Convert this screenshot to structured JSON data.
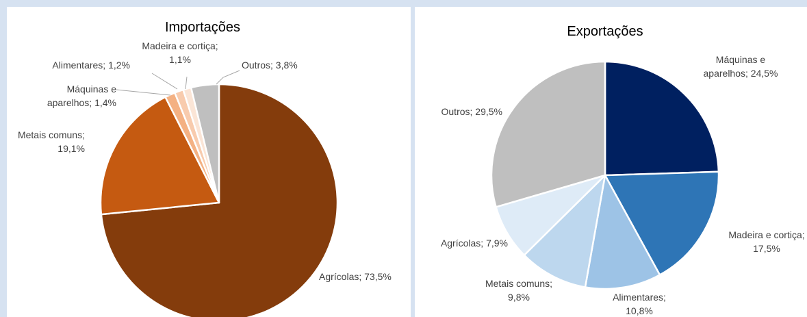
{
  "chart_data": [
    {
      "type": "pie",
      "title": "Importações",
      "slices": [
        {
          "label": "Agrícolas",
          "value": 73.5,
          "text": "Agrícolas; 73,5%",
          "color": "#843c0c"
        },
        {
          "label": "Metais comuns",
          "value": 19.1,
          "text": "Metais comuns;\n19,1%",
          "color": "#c55a11"
        },
        {
          "label": "Máquinas e aparelhos",
          "value": 1.4,
          "text": "Máquinas e\naparelhos; 1,4%",
          "color": "#f4b183"
        },
        {
          "label": "Alimentares",
          "value": 1.2,
          "text": "Alimentares; 1,2%",
          "color": "#f8cbad"
        },
        {
          "label": "Madeira e cortiça",
          "value": 1.1,
          "text": "Madeira e cortiça;\n1,1%",
          "color": "#fbe5d6"
        },
        {
          "label": "Outros",
          "value": 3.8,
          "text": "Outros; 3,8%",
          "color": "#bfbfbf"
        }
      ]
    },
    {
      "type": "pie",
      "title": "Exportações",
      "slices": [
        {
          "label": "Máquinas e aparelhos",
          "value": 24.5,
          "text": "Máquinas e\naparelhos; 24,5%",
          "color": "#002060"
        },
        {
          "label": "Madeira e cortiça",
          "value": 17.5,
          "text": "Madeira e cortiça;\n17,5%",
          "color": "#2e75b6"
        },
        {
          "label": "Alimentares",
          "value": 10.8,
          "text": "Alimentares;\n10,8%",
          "color": "#9dc3e6"
        },
        {
          "label": "Metais comuns",
          "value": 9.8,
          "text": "Metais comuns;\n9,8%",
          "color": "#bdd7ee"
        },
        {
          "label": "Agrícolas",
          "value": 7.9,
          "text": "Agrícolas; 7,9%",
          "color": "#deebf7"
        },
        {
          "label": "Outros",
          "value": 29.5,
          "text": "Outros; 29,5%",
          "color": "#bfbfbf"
        }
      ]
    }
  ]
}
